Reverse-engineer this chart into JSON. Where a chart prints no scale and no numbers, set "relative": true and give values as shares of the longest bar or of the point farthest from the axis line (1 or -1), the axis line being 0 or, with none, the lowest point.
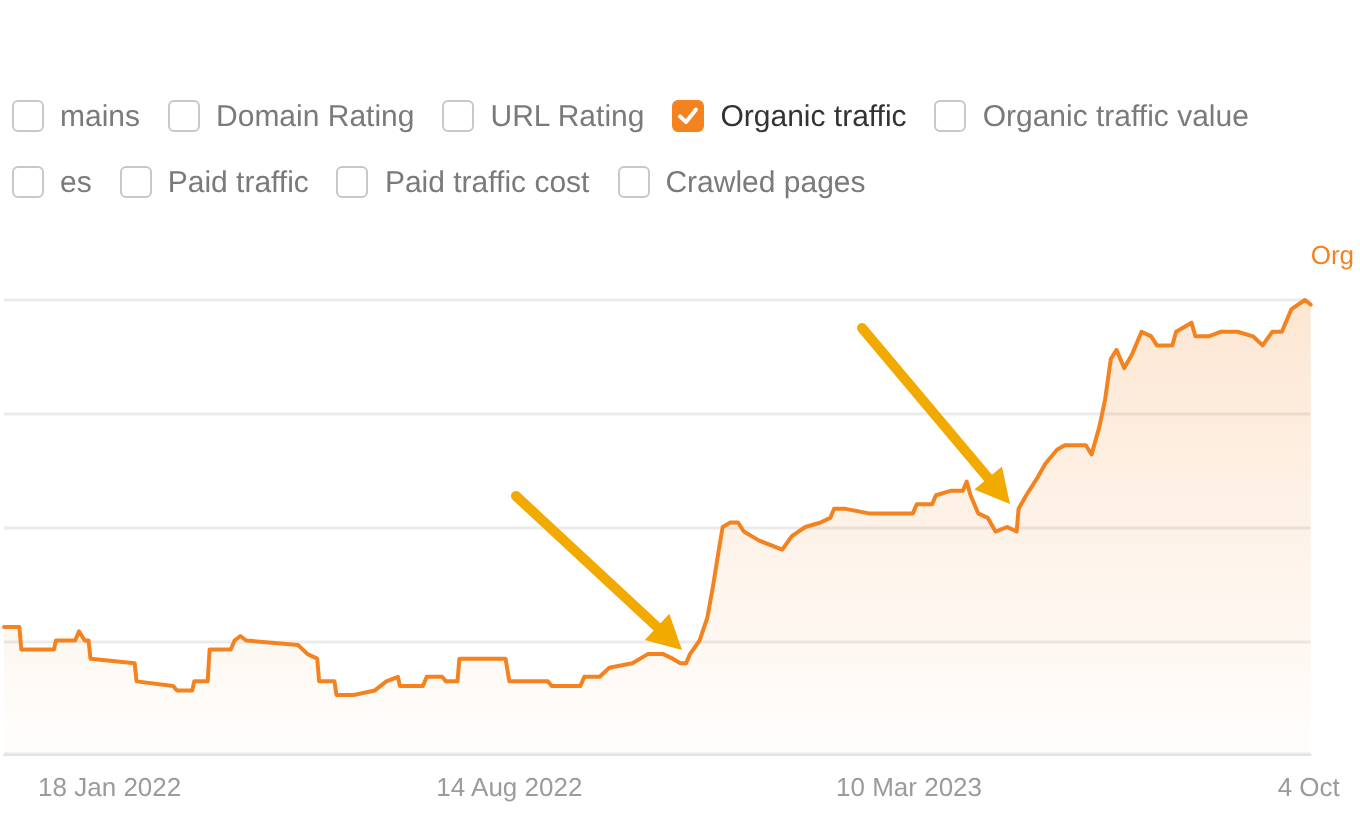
{
  "chart_data": {
    "type": "area",
    "relative": true,
    "x": [
      "2021-11-24",
      "2021-12-02",
      "2021-12-03",
      "2021-12-20",
      "2021-12-21",
      "2021-12-31",
      "2022-01-02",
      "2022-01-05",
      "2022-01-07",
      "2022-01-08",
      "2022-01-31",
      "2022-02-01",
      "2022-02-20",
      "2022-02-22",
      "2022-03-02",
      "2022-03-03",
      "2022-03-10",
      "2022-03-11",
      "2022-03-22",
      "2022-03-24",
      "2022-03-27",
      "2022-03-30",
      "2022-04-26",
      "2022-05-01",
      "2022-05-06",
      "2022-05-07",
      "2022-05-15",
      "2022-05-16",
      "2022-05-25",
      "2022-06-05",
      "2022-06-11",
      "2022-06-17",
      "2022-06-18",
      "2022-06-30",
      "2022-07-02",
      "2022-07-10",
      "2022-07-12",
      "2022-07-18",
      "2022-07-19",
      "2022-08-12",
      "2022-08-14",
      "2022-09-03",
      "2022-09-05",
      "2022-09-20",
      "2022-09-22",
      "2022-09-30",
      "2022-10-05",
      "2022-10-17",
      "2022-10-25",
      "2022-11-02",
      "2022-11-07",
      "2022-11-11",
      "2022-11-14",
      "2022-11-16",
      "2022-11-21",
      "2022-11-25",
      "2022-11-28",
      "2022-12-01",
      "2022-12-03",
      "2022-12-07",
      "2022-12-11",
      "2022-12-14",
      "2022-12-22",
      "2023-01-03",
      "2023-01-08",
      "2023-01-15",
      "2023-01-23",
      "2023-01-28",
      "2023-01-30",
      "2023-02-05",
      "2023-02-17",
      "2023-03-02",
      "2023-03-12",
      "2023-03-14",
      "2023-03-22",
      "2023-03-24",
      "2023-04-01",
      "2023-04-07",
      "2023-04-09",
      "2023-04-11",
      "2023-04-15",
      "2023-04-20",
      "2023-04-24",
      "2023-04-30",
      "2023-05-05",
      "2023-05-06",
      "2023-05-10",
      "2023-05-16",
      "2023-05-20",
      "2023-05-26",
      "2023-05-30",
      "2023-06-10",
      "2023-06-13",
      "2023-06-17",
      "2023-06-20",
      "2023-06-23",
      "2023-06-26",
      "2023-06-30",
      "2023-07-04",
      "2023-07-09",
      "2023-07-14",
      "2023-07-17",
      "2023-07-25",
      "2023-07-27",
      "2023-08-04",
      "2023-08-06",
      "2023-08-13",
      "2023-08-19",
      "2023-08-28",
      "2023-09-05",
      "2023-09-10",
      "2023-09-15",
      "2023-09-20",
      "2023-09-25",
      "2023-10-02",
      "2023-10-05"
    ],
    "series": [
      {
        "name": "Organic traffic",
        "color": "#f4831f",
        "values": [
          0.28,
          0.28,
          0.23,
          0.23,
          0.25,
          0.25,
          0.27,
          0.25,
          0.25,
          0.21,
          0.2,
          0.16,
          0.15,
          0.14,
          0.14,
          0.16,
          0.16,
          0.23,
          0.23,
          0.25,
          0.26,
          0.25,
          0.24,
          0.22,
          0.21,
          0.16,
          0.16,
          0.13,
          0.13,
          0.14,
          0.16,
          0.17,
          0.15,
          0.15,
          0.17,
          0.17,
          0.16,
          0.16,
          0.21,
          0.21,
          0.16,
          0.16,
          0.15,
          0.15,
          0.17,
          0.17,
          0.19,
          0.2,
          0.22,
          0.22,
          0.21,
          0.2,
          0.2,
          0.22,
          0.25,
          0.3,
          0.37,
          0.45,
          0.5,
          0.51,
          0.51,
          0.49,
          0.47,
          0.45,
          0.48,
          0.5,
          0.51,
          0.52,
          0.54,
          0.54,
          0.53,
          0.53,
          0.53,
          0.55,
          0.55,
          0.57,
          0.58,
          0.58,
          0.6,
          0.57,
          0.53,
          0.52,
          0.49,
          0.5,
          0.49,
          0.54,
          0.57,
          0.61,
          0.64,
          0.67,
          0.68,
          0.68,
          0.66,
          0.72,
          0.78,
          0.87,
          0.89,
          0.85,
          0.88,
          0.93,
          0.92,
          0.9,
          0.9,
          0.93,
          0.95,
          0.92,
          0.92,
          0.93,
          0.93,
          0.92,
          0.9,
          0.93,
          0.93,
          0.98,
          1,
          0.99
        ]
      }
    ],
    "xlim": [
      "2021-11-24",
      "2023-10-05"
    ],
    "xticks": [
      {
        "value": "2022-01-18",
        "label": "18 Jan 2022"
      },
      {
        "value": "2022-08-14",
        "label": "14 Aug 2022"
      },
      {
        "value": "2023-03-10",
        "label": "10 Mar 2023"
      },
      {
        "value": "2023-10-04",
        "label": "4 Oct"
      }
    ],
    "ylabel": "Org",
    "annotations": [
      "mains",
      "Domain Rating",
      "URL Rating",
      "Organic traffic value",
      "es",
      "Paid traffic",
      "Paid traffic cost",
      "Crawled pages"
    ],
    "grid": "y",
    "legend": "top"
  }
}
